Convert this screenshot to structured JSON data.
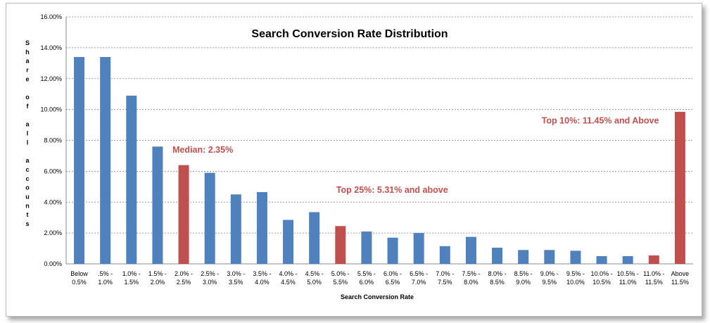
{
  "chart_data": {
    "type": "bar",
    "title": "Search Conversion Rate Distribution",
    "xlabel": "Search Conversion Rate",
    "ylabel": "Share of all accounts",
    "ylim": [
      0,
      16
    ],
    "y_tick_labels": [
      "0.00%",
      "2.00%",
      "4.00%",
      "6.00%",
      "8.00%",
      "10.00%",
      "12.00%",
      "14.00%",
      "16.00%"
    ],
    "grid": true,
    "categories": [
      [
        "Below",
        "0.5%"
      ],
      [
        ".5% -",
        "1.0%"
      ],
      [
        "1.0% -",
        "1.5%"
      ],
      [
        "1.5% -",
        "2.0%"
      ],
      [
        "2.0% -",
        "2.5%"
      ],
      [
        "2.5% -",
        "3.0%"
      ],
      [
        "3.0% -",
        "3.5%"
      ],
      [
        "3.5% -",
        "4.0%"
      ],
      [
        "4.0% -",
        "4.5%"
      ],
      [
        "4.5% -",
        "5.0%"
      ],
      [
        "5.0% -",
        "5.5%"
      ],
      [
        "5.5% -",
        "6.0%"
      ],
      [
        "6.0% -",
        "6.5%"
      ],
      [
        "6.5% -",
        "7.0%"
      ],
      [
        "7.0% -",
        "7.5%"
      ],
      [
        "7.5% -",
        "8.0%"
      ],
      [
        "8.0% -",
        "8.5%"
      ],
      [
        "8.5% -",
        "9.0%"
      ],
      [
        "9.0% -",
        "9.5%"
      ],
      [
        "9.5% -",
        "10.0%"
      ],
      [
        "10.0% -",
        "10.5%"
      ],
      [
        "10.5% -",
        "11.0%"
      ],
      [
        "11.0% -",
        "11.5%"
      ],
      [
        "Above",
        "11.5%"
      ]
    ],
    "values": [
      13.4,
      13.4,
      10.9,
      7.6,
      6.4,
      5.9,
      4.5,
      4.65,
      2.85,
      3.35,
      2.45,
      2.1,
      1.7,
      2.0,
      1.15,
      1.75,
      1.05,
      0.9,
      0.9,
      0.85,
      0.5,
      0.5,
      0.55,
      9.85
    ],
    "highlight_indices": [
      4,
      10,
      22,
      23
    ],
    "colors": {
      "bar": "#4f81bd",
      "highlight": "#c0504d",
      "grid": "#7f7f7f"
    },
    "annotations": [
      {
        "text": "Median: 2.35%",
        "category_index": 4,
        "y": 7.2
      },
      {
        "text": "Top 25%: 5.31% and above",
        "category_index": 10,
        "y": 4.6
      },
      {
        "text": "Top 10%: 11.45% and Above",
        "category_index": 23,
        "y": 9.1
      }
    ]
  }
}
